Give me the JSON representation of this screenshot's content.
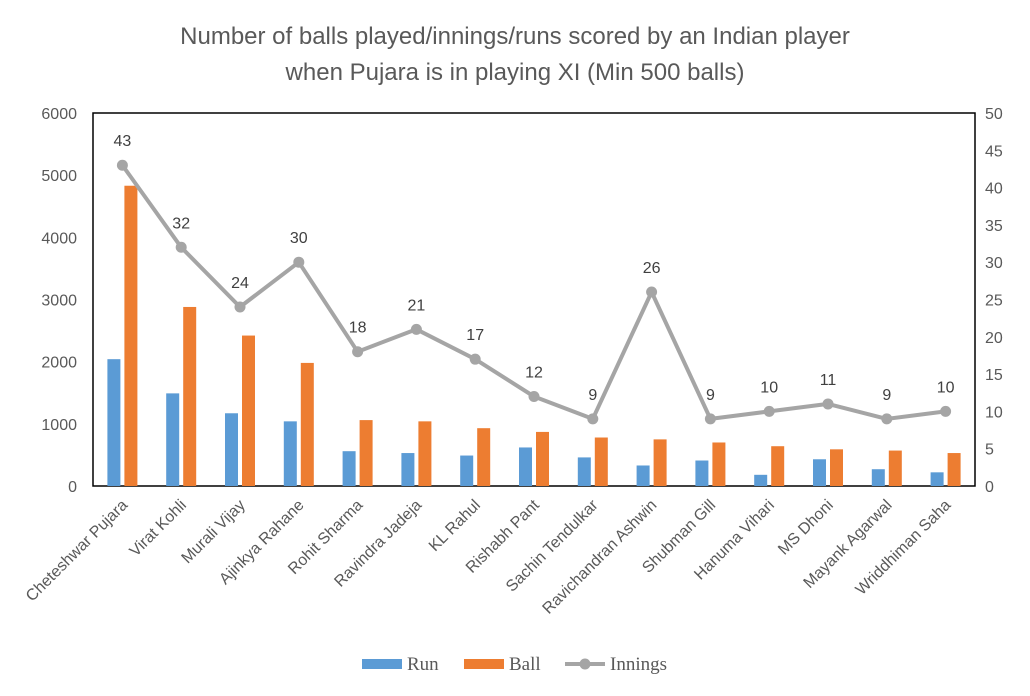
{
  "chart_data": {
    "type": "bar",
    "title": "Number of balls played/innings/runs scored by an Indian player when Pujara is in playing XI (Min 500 balls)",
    "title_lines": [
      "Number of balls played/innings/runs scored by an Indian player",
      "when Pujara is in playing XI (Min 500 balls)"
    ],
    "categories": [
      "Cheteshwar Pujara",
      "Virat Kohli",
      "Murali Vijay",
      "Ajinkya Rahane",
      "Rohit Sharma",
      "Ravindra Jadeja",
      "KL Rahul",
      "Rishabh Pant",
      "Sachin Tendulkar",
      "Ravichandran Ashwin",
      "Shubman Gill",
      "Hanuma Vihari",
      "MS Dhoni",
      "Mayank Agarwal",
      "Wriddhiman Saha"
    ],
    "series": [
      {
        "name": "Run",
        "type": "bar",
        "axis": "left",
        "color": "#5B9BD5",
        "values": [
          2040,
          1490,
          1170,
          1040,
          560,
          530,
          490,
          620,
          460,
          330,
          410,
          180,
          430,
          270,
          220
        ]
      },
      {
        "name": "Ball",
        "type": "bar",
        "axis": "left",
        "color": "#ED7D31",
        "values": [
          4830,
          2880,
          2420,
          1980,
          1060,
          1040,
          930,
          870,
          780,
          750,
          700,
          640,
          590,
          570,
          530
        ]
      },
      {
        "name": "Innings",
        "type": "line",
        "axis": "right",
        "color": "#A5A5A5",
        "values": [
          43,
          32,
          24,
          30,
          18,
          21,
          17,
          12,
          9,
          26,
          9,
          10,
          11,
          9,
          10
        ],
        "data_labels": [
          "43",
          "32",
          "24",
          "30",
          "18",
          "21",
          "17",
          "12",
          "9",
          "26",
          "9",
          "10",
          "11",
          "9",
          "10"
        ]
      }
    ],
    "y_left": {
      "lim": [
        0,
        6000
      ],
      "ticks": [
        "0",
        "1000",
        "2000",
        "3000",
        "4000",
        "5000",
        "6000"
      ]
    },
    "y_right": {
      "lim": [
        0,
        50
      ],
      "ticks": [
        "0",
        "5",
        "10",
        "15",
        "20",
        "25",
        "30",
        "35",
        "40",
        "45",
        "50"
      ]
    },
    "xlabel": "",
    "ylabel": "",
    "grid": false,
    "legend": {
      "position": "bottom",
      "items": [
        "Run",
        "Ball",
        "Innings"
      ]
    }
  }
}
